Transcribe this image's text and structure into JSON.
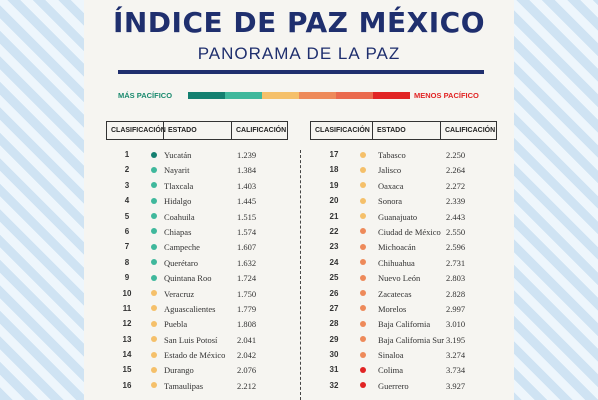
{
  "header": {
    "title": "ÍNDICE DE PAZ MÉXICO",
    "subtitle": "PANORAMA DE LA PAZ"
  },
  "scale": {
    "left_label": "MÁS PACÍFICO",
    "right_label": "MENOS PACÍFICO",
    "left_color": "#1a8a6e",
    "right_color": "#e12424",
    "colors": [
      "#148070",
      "#3fb89c",
      "#f5c06a",
      "#ee8a5a",
      "#ea6a4e",
      "#e12424"
    ]
  },
  "columns": {
    "rank": "CLASIFICACIÓN",
    "state": "ESTADO",
    "score": "CALIFICACIÓN"
  },
  "chart_data": {
    "type": "table",
    "title": "ÍNDICE DE PAZ MÉXICO",
    "subtitle": "PANORAMA DE LA PAZ",
    "columns": [
      "CLASIFICACIÓN",
      "ESTADO",
      "CALIFICACIÓN"
    ],
    "rows": [
      {
        "rank": "1",
        "state": "Yucatán",
        "score": "1.239",
        "color": "#148070"
      },
      {
        "rank": "2",
        "state": "Nayarit",
        "score": "1.384",
        "color": "#3fb89c"
      },
      {
        "rank": "3",
        "state": "Tlaxcala",
        "score": "1.403",
        "color": "#3fb89c"
      },
      {
        "rank": "4",
        "state": "Hidalgo",
        "score": "1.445",
        "color": "#3fb89c"
      },
      {
        "rank": "5",
        "state": "Coahuila",
        "score": "1.515",
        "color": "#3fb89c"
      },
      {
        "rank": "6",
        "state": "Chiapas",
        "score": "1.574",
        "color": "#3fb89c"
      },
      {
        "rank": "7",
        "state": "Campeche",
        "score": "1.607",
        "color": "#3fb89c"
      },
      {
        "rank": "8",
        "state": "Querétaro",
        "score": "1.632",
        "color": "#3fb89c"
      },
      {
        "rank": "9",
        "state": "Quintana Roo",
        "score": "1.724",
        "color": "#3fb89c"
      },
      {
        "rank": "10",
        "state": "Veracruz",
        "score": "1.750",
        "color": "#f5c06a"
      },
      {
        "rank": "11",
        "state": "Aguascalientes",
        "score": "1.779",
        "color": "#f5c06a"
      },
      {
        "rank": "12",
        "state": "Puebla",
        "score": "1.808",
        "color": "#f5c06a"
      },
      {
        "rank": "13",
        "state": "San Luis Potosí",
        "score": "2.041",
        "color": "#f5c06a"
      },
      {
        "rank": "14",
        "state": "Estado de México",
        "score": "2.042",
        "color": "#f5c06a"
      },
      {
        "rank": "15",
        "state": "Durango",
        "score": "2.076",
        "color": "#f5c06a"
      },
      {
        "rank": "16",
        "state": "Tamaulipas",
        "score": "2.212",
        "color": "#f5c06a"
      },
      {
        "rank": "17",
        "state": "Tabasco",
        "score": "2.250",
        "color": "#f5c06a"
      },
      {
        "rank": "18",
        "state": "Jalisco",
        "score": "2.264",
        "color": "#f5c06a"
      },
      {
        "rank": "19",
        "state": "Oaxaca",
        "score": "2.272",
        "color": "#f5c06a"
      },
      {
        "rank": "20",
        "state": "Sonora",
        "score": "2.339",
        "color": "#f5c06a"
      },
      {
        "rank": "21",
        "state": "Guanajuato",
        "score": "2.443",
        "color": "#f5c06a"
      },
      {
        "rank": "22",
        "state": "Ciudad de México",
        "score": "2.550",
        "color": "#ee8a5a"
      },
      {
        "rank": "23",
        "state": "Michoacán",
        "score": "2.596",
        "color": "#ee8a5a"
      },
      {
        "rank": "24",
        "state": "Chihuahua",
        "score": "2.731",
        "color": "#ee8a5a"
      },
      {
        "rank": "25",
        "state": "Nuevo León",
        "score": "2.803",
        "color": "#ee8a5a"
      },
      {
        "rank": "26",
        "state": "Zacatecas",
        "score": "2.828",
        "color": "#ee8a5a"
      },
      {
        "rank": "27",
        "state": "Morelos",
        "score": "2.997",
        "color": "#ee8a5a"
      },
      {
        "rank": "28",
        "state": "Baja California",
        "score": "3.010",
        "color": "#ee8a5a"
      },
      {
        "rank": "29",
        "state": "Baja California Sur",
        "score": "3.195",
        "color": "#ee8a5a"
      },
      {
        "rank": "30",
        "state": "Sinaloa",
        "score": "3.274",
        "color": "#ee8a5a"
      },
      {
        "rank": "31",
        "state": "Colima",
        "score": "3.734",
        "color": "#e12424"
      },
      {
        "rank": "32",
        "state": "Guerrero",
        "score": "3.927",
        "color": "#e12424"
      }
    ]
  }
}
